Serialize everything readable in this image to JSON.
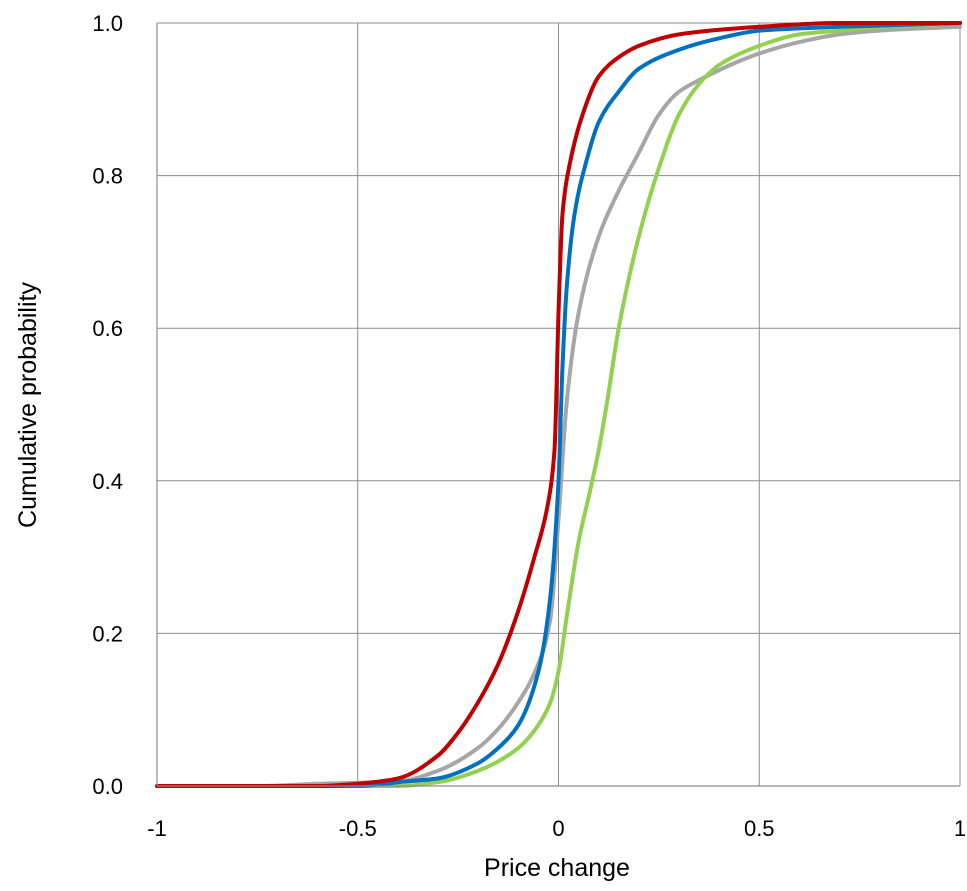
{
  "chart_data": {
    "type": "line",
    "title": "",
    "xlabel": "Price change",
    "ylabel": "Cumulative probability",
    "xlim": [
      -1,
      1
    ],
    "ylim": [
      0,
      1
    ],
    "x_ticks": [
      "-1",
      "-0.5",
      "0",
      "0.5",
      "1"
    ],
    "y_ticks": [
      "0.0",
      "0.2",
      "0.4",
      "0.6",
      "0.8",
      "1.0"
    ],
    "grid": true,
    "legend": "none",
    "series": [
      {
        "color": "#a6a6a6",
        "points": [
          [
            -1,
            0
          ],
          [
            -0.75,
            0
          ],
          [
            -0.6,
            0.003
          ],
          [
            -0.4,
            0.006
          ],
          [
            -0.3,
            0.02
          ],
          [
            -0.2,
            0.05
          ],
          [
            -0.15,
            0.075
          ],
          [
            -0.1,
            0.11
          ],
          [
            -0.05,
            0.16
          ],
          [
            -0.02,
            0.22
          ],
          [
            0,
            0.35
          ],
          [
            0.02,
            0.5
          ],
          [
            0.05,
            0.62
          ],
          [
            0.1,
            0.72
          ],
          [
            0.15,
            0.78
          ],
          [
            0.2,
            0.83
          ],
          [
            0.25,
            0.88
          ],
          [
            0.3,
            0.91
          ],
          [
            0.35,
            0.925
          ],
          [
            0.45,
            0.95
          ],
          [
            0.5,
            0.96
          ],
          [
            0.6,
            0.975
          ],
          [
            0.7,
            0.985
          ],
          [
            0.8,
            0.99
          ],
          [
            1,
            0.995
          ]
        ]
      },
      {
        "color": "#92d050",
        "points": [
          [
            -1,
            0
          ],
          [
            -0.4,
            0
          ],
          [
            -0.3,
            0.005
          ],
          [
            -0.2,
            0.02
          ],
          [
            -0.1,
            0.05
          ],
          [
            -0.05,
            0.08
          ],
          [
            -0.02,
            0.11
          ],
          [
            0,
            0.15
          ],
          [
            0.02,
            0.22
          ],
          [
            0.05,
            0.32
          ],
          [
            0.08,
            0.39
          ],
          [
            0.1,
            0.44
          ],
          [
            0.12,
            0.5
          ],
          [
            0.15,
            0.6
          ],
          [
            0.2,
            0.72
          ],
          [
            0.25,
            0.81
          ],
          [
            0.3,
            0.88
          ],
          [
            0.35,
            0.92
          ],
          [
            0.4,
            0.945
          ],
          [
            0.5,
            0.97
          ],
          [
            0.6,
            0.985
          ],
          [
            0.7,
            0.99
          ],
          [
            0.8,
            0.995
          ],
          [
            1,
            1
          ]
        ]
      },
      {
        "color": "#0070c0",
        "points": [
          [
            -1,
            0
          ],
          [
            -0.5,
            0
          ],
          [
            -0.4,
            0.005
          ],
          [
            -0.3,
            0.01
          ],
          [
            -0.2,
            0.03
          ],
          [
            -0.15,
            0.05
          ],
          [
            -0.1,
            0.08
          ],
          [
            -0.05,
            0.15
          ],
          [
            -0.02,
            0.25
          ],
          [
            0,
            0.4
          ],
          [
            0.01,
            0.55
          ],
          [
            0.02,
            0.65
          ],
          [
            0.04,
            0.75
          ],
          [
            0.07,
            0.82
          ],
          [
            0.1,
            0.87
          ],
          [
            0.15,
            0.91
          ],
          [
            0.2,
            0.94
          ],
          [
            0.3,
            0.965
          ],
          [
            0.4,
            0.98
          ],
          [
            0.5,
            0.99
          ],
          [
            0.7,
            0.995
          ],
          [
            1,
            1
          ]
        ]
      },
      {
        "color": "#c00000",
        "points": [
          [
            -1,
            0
          ],
          [
            -0.6,
            0
          ],
          [
            -0.5,
            0.003
          ],
          [
            -0.4,
            0.01
          ],
          [
            -0.3,
            0.04
          ],
          [
            -0.25,
            0.07
          ],
          [
            -0.2,
            0.11
          ],
          [
            -0.15,
            0.16
          ],
          [
            -0.1,
            0.23
          ],
          [
            -0.06,
            0.3
          ],
          [
            -0.03,
            0.36
          ],
          [
            -0.01,
            0.44
          ],
          [
            0,
            0.62
          ],
          [
            0.01,
            0.75
          ],
          [
            0.03,
            0.82
          ],
          [
            0.06,
            0.88
          ],
          [
            0.1,
            0.93
          ],
          [
            0.15,
            0.955
          ],
          [
            0.2,
            0.97
          ],
          [
            0.3,
            0.985
          ],
          [
            0.5,
            0.995
          ],
          [
            0.7,
            1
          ],
          [
            1,
            1
          ]
        ]
      }
    ]
  }
}
